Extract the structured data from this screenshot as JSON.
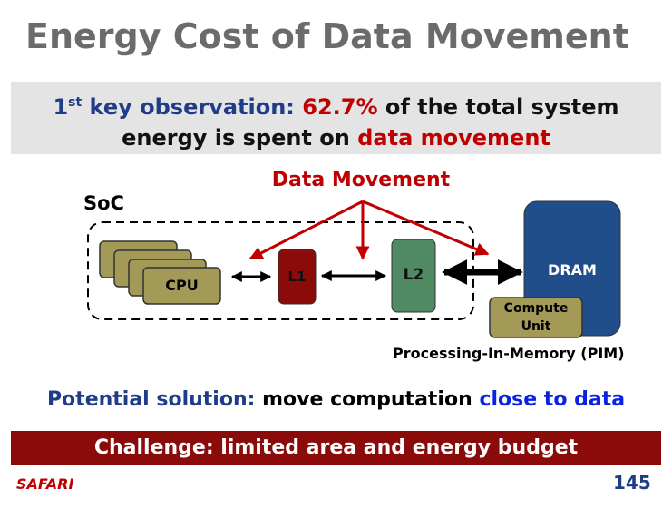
{
  "title": "Energy Cost of Data Movement",
  "observation": {
    "ordinal": "1",
    "ordinal_suffix": "st",
    "lead": "key observation:",
    "percent": "62.7%",
    "line1_rest": "of the total system",
    "line2_lead": "energy is spent on",
    "highlight": "data movement"
  },
  "diagram": {
    "arrow_label": "Data Movement",
    "soc": "SoC",
    "cpu": "CPU",
    "l1": "L1",
    "l2": "L2",
    "dram": "DRAM",
    "compute_unit": {
      "line1": "Compute",
      "line2": "Unit"
    },
    "pim": "Processing-In-Memory (PIM)"
  },
  "solution": {
    "lead": "Potential solution:",
    "text": "move computation",
    "highlight": "close to data"
  },
  "challenge": "Challenge: limited area and energy budget",
  "footer": {
    "brand": "SAFARI",
    "page": "145"
  }
}
